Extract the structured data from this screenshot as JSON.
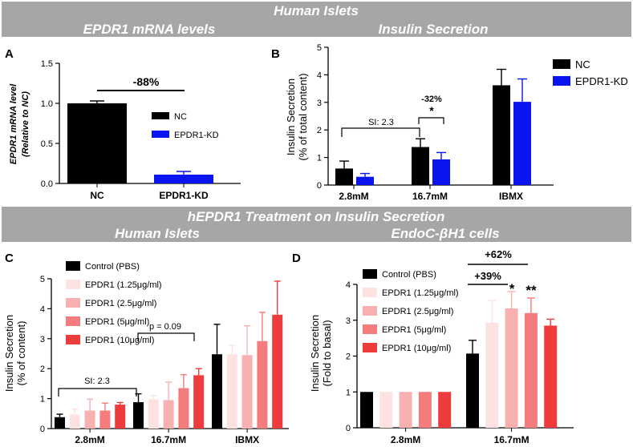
{
  "headers": {
    "top_title": "Human Islets",
    "top_left": "EPDR1 mRNA levels",
    "top_right": "Insulin Secretion",
    "mid_title": "hEPDR1 Treatment on Insulin Secretion",
    "mid_left": "Human Islets",
    "mid_right": "EndoC-βH1 cells"
  },
  "colors": {
    "header_bg": "#a6a6a6",
    "NC": "#000000",
    "EPDR1-KD": "#0a14ee",
    "control": "#000000",
    "epdr1_1_25": "#fde2e2",
    "epdr1_2_5": "#f9b0b0",
    "epdr1_5": "#f47c7c",
    "epdr1_10": "#ee3b3b"
  },
  "chart_data": [
    {
      "panel": "A",
      "type": "bar",
      "ylabel": "EPDR1 mRNA level (Relative to NC)",
      "ylabel_line1": "EPDR1 mRNA level",
      "ylabel_line2": "(Relative to NC)",
      "ylim": [
        0,
        1.5
      ],
      "yticks": [
        "0.0",
        "0.5",
        "1.0",
        "1.5"
      ],
      "categories": [
        "NC",
        "EPDR1-KD"
      ],
      "values": [
        1.0,
        0.11
      ],
      "errors": [
        0.03,
        0.04
      ],
      "legend": [
        "NC",
        "EPDR1-KD"
      ],
      "annotation": "-88%"
    },
    {
      "panel": "B",
      "type": "bar",
      "ylabel_line1": "Insulin Secretion",
      "ylabel_line2": "(% of total content)",
      "ylim": [
        0,
        5
      ],
      "yticks": [
        "0",
        "1",
        "2",
        "3",
        "4",
        "5"
      ],
      "categories": [
        "2.8mM",
        "16.7mM",
        "IBMX"
      ],
      "series": [
        {
          "name": "NC",
          "values": [
            0.6,
            1.38,
            3.62
          ],
          "errors": [
            0.27,
            0.3,
            0.58
          ]
        },
        {
          "name": "EPDR1-KD",
          "values": [
            0.3,
            0.93,
            3.02
          ],
          "errors": [
            0.12,
            0.25,
            0.83
          ]
        }
      ],
      "annotations": {
        "si": "SI: 2.3",
        "pct": "-32%",
        "sig": "*"
      }
    },
    {
      "panel": "C",
      "type": "bar",
      "ylabel_line1": "Insulin Secretion",
      "ylabel_line2": "(% of content)",
      "ylim": [
        0,
        5
      ],
      "yticks": [
        "0",
        "1",
        "2",
        "3",
        "4",
        "5"
      ],
      "categories": [
        "2.8mM",
        "16.7mM",
        "IBMX"
      ],
      "series": [
        {
          "name": "Control (PBS)",
          "values": [
            0.38,
            0.88,
            2.48
          ],
          "errors": [
            0.1,
            0.28,
            1.0
          ]
        },
        {
          "name": "EPDR1 (1.25μg/ml)",
          "values": [
            0.47,
            0.98,
            2.48
          ],
          "errors": [
            0.18,
            0.12,
            0.3
          ]
        },
        {
          "name": "EPDR1 (2.5μg/ml)",
          "values": [
            0.6,
            0.95,
            2.45
          ],
          "errors": [
            0.38,
            0.6,
            0.98
          ]
        },
        {
          "name": "EPDR1 (5μg/ml)",
          "values": [
            0.6,
            1.35,
            2.92
          ],
          "errors": [
            0.25,
            0.45,
            0.96
          ]
        },
        {
          "name": "EPDR1 (10μg/ml)",
          "values": [
            0.8,
            1.78,
            3.8
          ],
          "errors": [
            0.07,
            0.22,
            1.12
          ]
        }
      ],
      "annotations": {
        "si": "SI: 2.3",
        "p": "p = 0.09"
      }
    },
    {
      "panel": "D",
      "type": "bar",
      "ylabel_line1": "Insulin Secretion",
      "ylabel_line2": "(Fold to basal)",
      "ylim": [
        0,
        4
      ],
      "yticks": [
        "0",
        "1",
        "2",
        "3",
        "4"
      ],
      "categories": [
        "2.8mM",
        "16.7mM"
      ],
      "series": [
        {
          "name": "Control (PBS)",
          "values": [
            1.0,
            2.07
          ],
          "errors": [
            0,
            0.37
          ]
        },
        {
          "name": "EPDR1 (1.25μg/ml)",
          "values": [
            1.0,
            2.93
          ],
          "errors": [
            0,
            0.62
          ]
        },
        {
          "name": "EPDR1 (2.5μg/ml)",
          "values": [
            1.0,
            3.33
          ],
          "errors": [
            0,
            0.47
          ]
        },
        {
          "name": "EPDR1 (5μg/ml)",
          "values": [
            1.0,
            3.2
          ],
          "errors": [
            0,
            0.42
          ]
        },
        {
          "name": "EPDR1 (10μg/ml)",
          "values": [
            1.0,
            2.85
          ],
          "errors": [
            0,
            0.18
          ]
        }
      ],
      "annotations": {
        "p62": "+62%",
        "p39": "+39%",
        "sig1": "*",
        "sig2": "**"
      }
    }
  ]
}
